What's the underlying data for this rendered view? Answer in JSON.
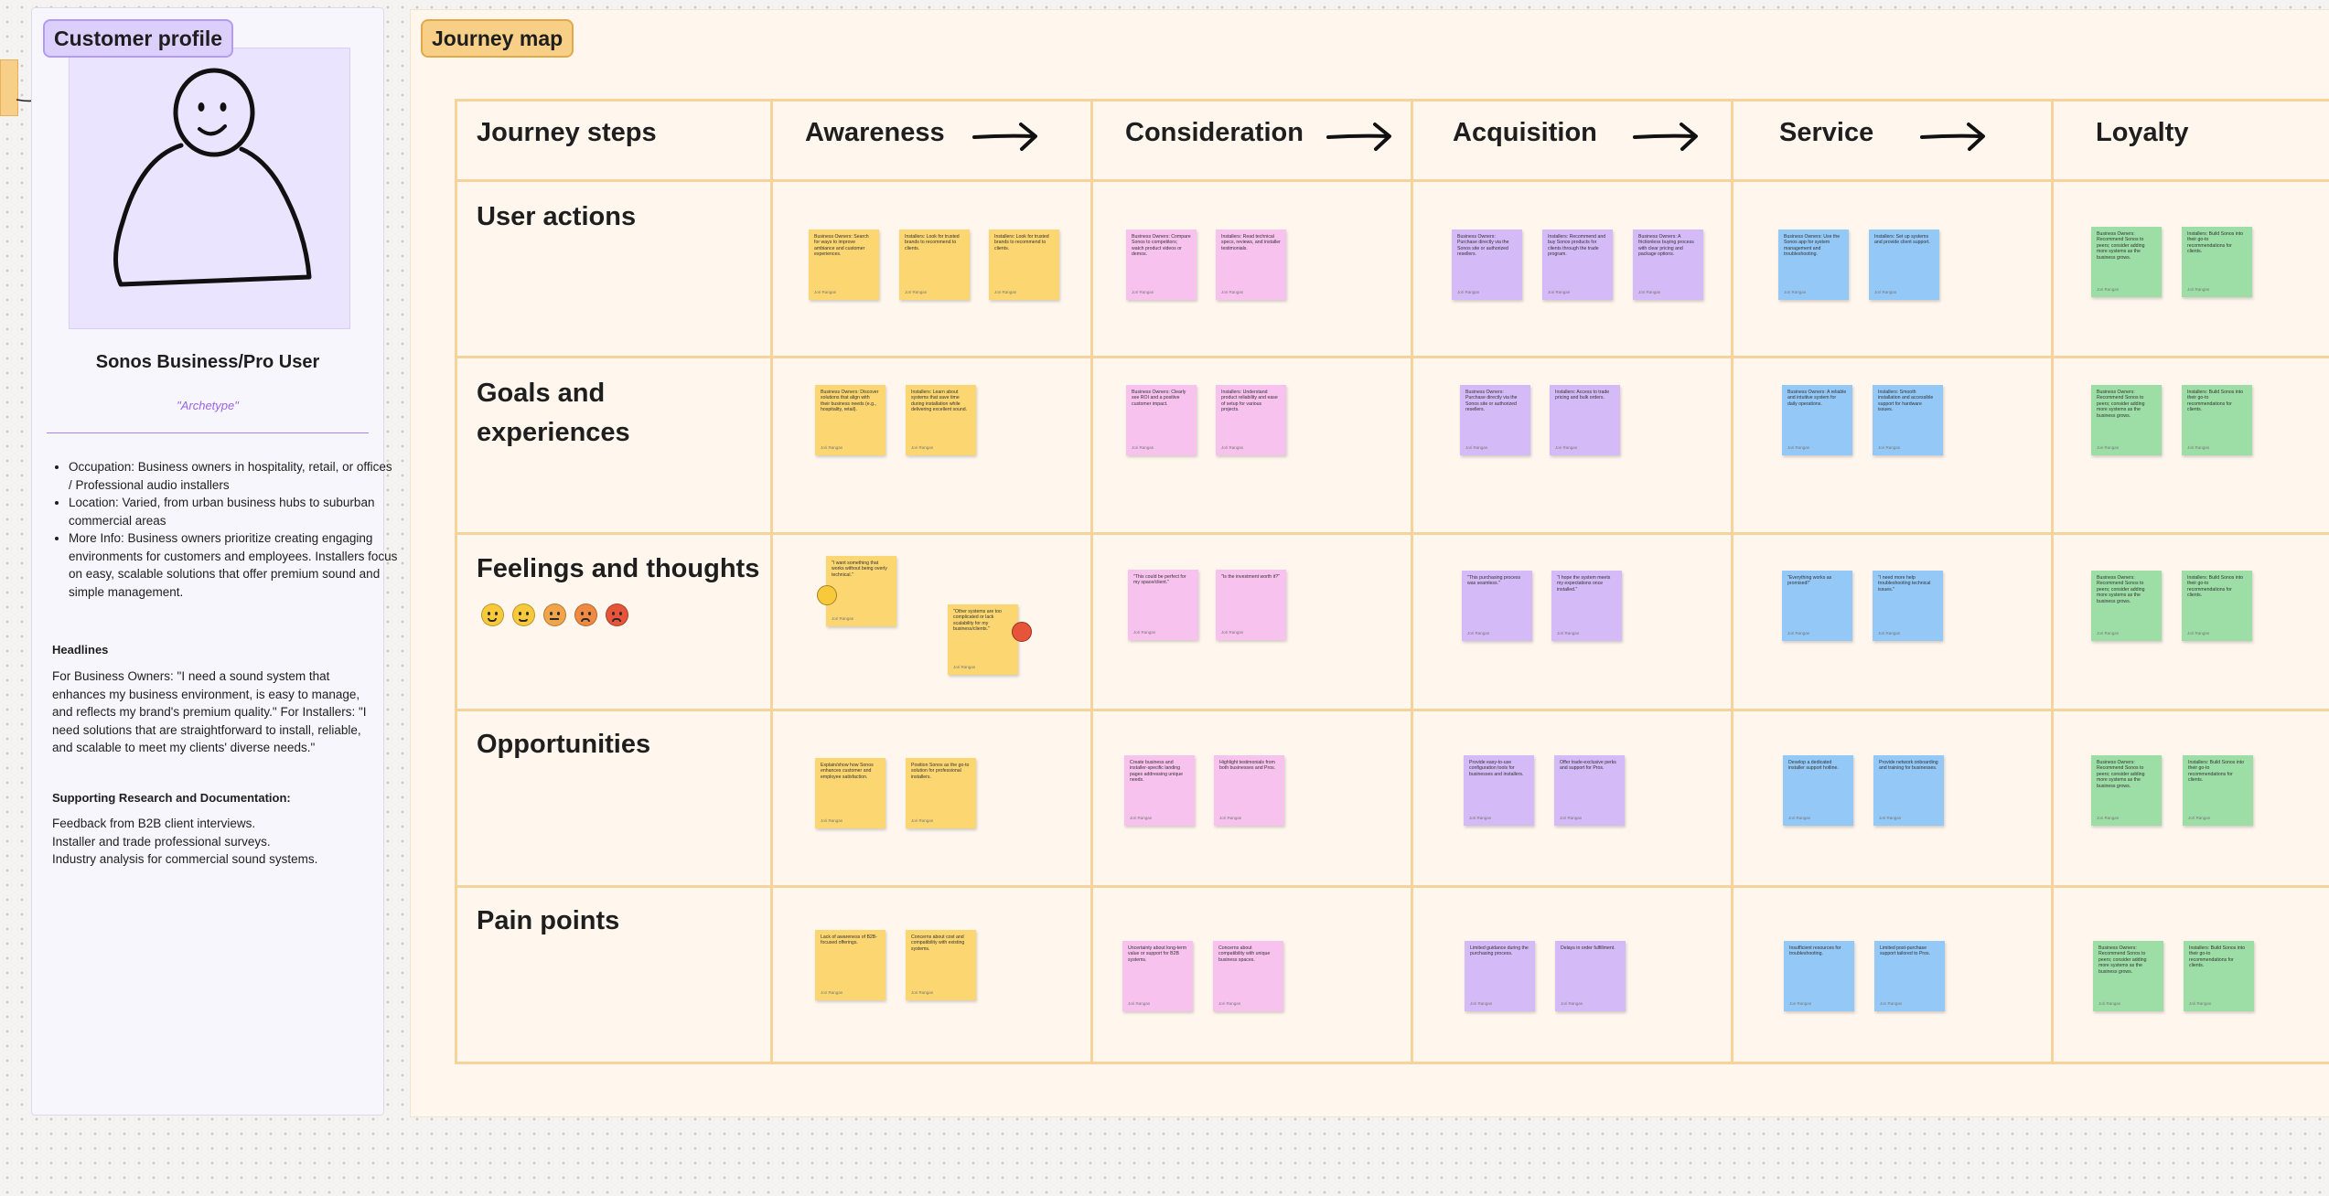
{
  "profile": {
    "tag": "Customer profile",
    "name": "Sonos Business/Pro User",
    "archetype": "\"Archetype\"",
    "bullets": [
      "Occupation: Business owners in hospitality, retail, or offices / Professional audio installers",
      "Location: Varied, from urban business hubs to suburban commercial areas",
      "More Info: Business owners prioritize creating engaging environments for customers and employees. Installers focus on easy, scalable solutions that offer premium sound and simple management."
    ],
    "headlines_title": "Headlines",
    "headlines_text": "For Business Owners: \"I need a sound system that enhances my business environment, is easy to manage, and reflects my brand's premium quality.\" For Installers: \"I need solutions that are straightforward to install, reliable, and scalable to meet my clients' diverse needs.\"",
    "research_title": "Supporting Research and Documentation:",
    "research_lines": [
      "Feedback from B2B client interviews.",
      "Installer and trade professional surveys.",
      "Industry analysis for commercial sound systems."
    ]
  },
  "journey": {
    "tag": "Journey map",
    "corner_label": "Journey steps",
    "stages": [
      "Awareness",
      "Consideration",
      "Acquisition",
      "Service",
      "Loyalty"
    ],
    "rows": [
      "User actions",
      "Goals and experiences",
      "Feelings and thoughts",
      "Opportunities",
      "Pain points"
    ],
    "emotion_scale": [
      "grinning",
      "smiling",
      "neutral",
      "frowning",
      "angry"
    ]
  },
  "notes": {
    "r0": [
      "Business Owners: Search for ways to improve ambiance and customer experiences.",
      "Installers: Look for trusted brands to recommend to clients.",
      "Installers: Look for trusted brands to recommend to clients.",
      "Business Owners: Compare Sonos to competitors; watch product videos or demos.",
      "Installers: Read technical specs, reviews, and installer testimonials.",
      "Business Owners: Purchase directly via the Sonos site or authorized resellers.",
      "Installers: Recommend and buy Sonos products for clients through the trade program.",
      "Business Owners: A frictionless buying process with clear pricing and package options.",
      "Business Owners: Use the Sonos app for system management and troubleshooting.",
      "Installers: Set up systems and provide client support.",
      "Business Owners: Recommend Sonos to peers; consider adding more systems as the business grows.",
      "Installers: Build Sonos into their go-to recommendations for clients."
    ],
    "r1": [
      "Business Owners: Discover solutions that align with their business needs (e.g., hospitality, retail).",
      "Installers: Learn about systems that save time during installation while delivering excellent sound.",
      "Business Owners: Clearly see ROI and a positive customer impact.",
      "Installers: Understand product reliability and ease of setup for various projects.",
      "Business Owners: Purchase directly via the Sonos site or authorized resellers.",
      "Installers: Access to trade pricing and bulk orders.",
      "Business Owners: A reliable and intuitive system for daily operations.",
      "Installers: Smooth installation and accessible support for hardware issues.",
      "Business Owners: Recommend Sonos to peers; consider adding more systems as the business grows.",
      "Installers: Build Sonos into their go-to recommendations for clients."
    ],
    "r2": [
      "\"I want something that works without being overly technical.\"",
      "\"Other systems are too complicated or lack scalability for my business/clients.\"",
      "\"This could be perfect for my space/client.\"",
      "\"Is the investment worth it?\"",
      "\"This purchasing process was seamless.\"",
      "\"I hope the system meets my expectations once installed.\"",
      "\"Everything works as promised!\"",
      "\"I need more help troubleshooting technical issues.\"",
      "Business Owners: Recommend Sonos to peers; consider adding more systems as the business grows.",
      "Installers: Build Sonos into their go-to recommendations for clients."
    ],
    "r3": [
      "Explain/show how Sonos enhances customer and employee satisfaction.",
      "Position Sonos as the go-to solution for professional installers.",
      "Create business and installer-specific landing pages addressing unique needs.",
      "Highlight testimonials from both businesses and Pros.",
      "Provide easy-to-use configuration tools for businesses and installers.",
      "Offer trade-exclusive perks and support for Pros.",
      "Develop a dedicated installer support hotline.",
      "Provide network onboarding and training for businesses.",
      "Business Owners: Recommend Sonos to peers; consider adding more systems as the business grows.",
      "Installers: Build Sonos into their go-to recommendations for clients."
    ],
    "r4": [
      "Lack of awareness of B2B-focused offerings.",
      "Concerns about cost and compatibility with existing systems.",
      "Uncertainty about long-term value or support for B2B systems.",
      "Concerns about compatibility with unique business spaces.",
      "Limited guidance during the purchasing process.",
      "Delays in order fulfillment.",
      "Insufficient resources for troubleshooting.",
      "Limited post-purchase support tailored to Pros.",
      "Business Owners: Recommend Sonos to peers; consider adding more systems as the business grows.",
      "Installers: Build Sonos into their go-to recommendations for clients."
    ],
    "author": "Jori Rangan"
  }
}
